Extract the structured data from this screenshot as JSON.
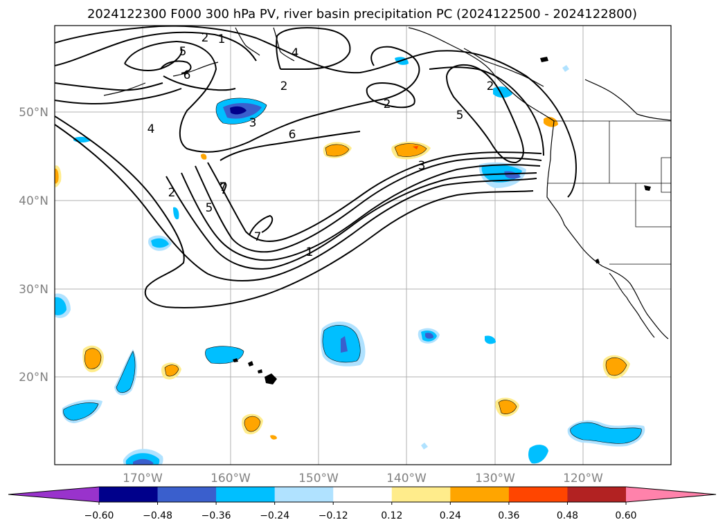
{
  "title": "2024122300 F000 300 hPa PV, river basin precipitation PC (2024122500 - 2024122800)",
  "map": {
    "lon_ticks": [
      "170°W",
      "160°W",
      "150°W",
      "140°W",
      "130°W",
      "120°W"
    ],
    "lat_ticks": [
      "50°N",
      "40°N",
      "30°N",
      "20°N"
    ],
    "gridline_color": "#b0b0b0",
    "contour_labels": [
      "2",
      "5",
      "6",
      "2",
      "2",
      "4",
      "2",
      "5",
      "4",
      "3",
      "6",
      "5",
      "3",
      "2",
      "7",
      "7",
      "1",
      "1"
    ]
  },
  "colorbar": {
    "ticks": [
      "−0.60",
      "−0.48",
      "−0.36",
      "−0.24",
      "−0.12",
      "0.12",
      "0.24",
      "0.36",
      "0.48",
      "0.60"
    ],
    "colors": [
      "#9933cc",
      "#00008b",
      "#3a5fcd",
      "#00bfff",
      "#b0e2ff",
      "#ffffff",
      "#ffec8b",
      "#ffa500",
      "#ff4500",
      "#b22222",
      "#ff82ab"
    ]
  }
}
